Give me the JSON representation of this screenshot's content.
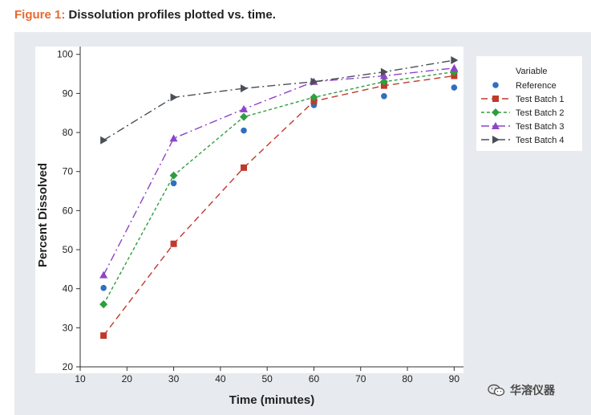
{
  "caption": {
    "label": "Figure 1:",
    "text": "Dissolution profiles plotted vs. time."
  },
  "watermark": {
    "text": "华溶仪器",
    "icon": "wechat-icon"
  },
  "chart_data": {
    "type": "line",
    "xlabel": "Time (minutes)",
    "ylabel": "Percent Dissolved",
    "xlim": [
      10,
      92
    ],
    "ylim": [
      20,
      102
    ],
    "xticks": [
      10,
      20,
      30,
      40,
      50,
      60,
      70,
      80,
      90
    ],
    "yticks": [
      20,
      30,
      40,
      50,
      60,
      70,
      80,
      90,
      100
    ],
    "grid": false,
    "legend_position": "top-right",
    "legend_title": "Variable",
    "series": [
      {
        "name": "Reference",
        "color": "#2f6fbf",
        "marker": "circle",
        "line": "none",
        "x": [
          15,
          30,
          45,
          60,
          75,
          90
        ],
        "y": [
          40.2,
          67,
          80.5,
          87,
          89.3,
          91.5
        ]
      },
      {
        "name": "Test Batch 1",
        "color": "#c0392b",
        "marker": "square",
        "line": "dashed",
        "x": [
          15,
          30,
          45,
          60,
          75,
          90
        ],
        "y": [
          28,
          51.5,
          71,
          88,
          92,
          94.5
        ]
      },
      {
        "name": "Test Batch 2",
        "color": "#2e9e3f",
        "marker": "diamond",
        "line": "dotted",
        "x": [
          15,
          30,
          45,
          60,
          75,
          90
        ],
        "y": [
          36,
          69,
          84,
          89,
          93,
          95.5
        ]
      },
      {
        "name": "Test Batch 3",
        "color": "#8e44c9",
        "marker": "triangle-up",
        "line": "dashdot",
        "x": [
          15,
          30,
          45,
          60,
          75,
          90
        ],
        "y": [
          43.5,
          78.5,
          86,
          93,
          94.5,
          96.5
        ]
      },
      {
        "name": "Test Batch 4",
        "color": "#4a4f55",
        "marker": "triangle-right",
        "line": "dashdot",
        "x": [
          15,
          30,
          45,
          60,
          75,
          90
        ],
        "y": [
          78,
          89,
          91.3,
          93,
          95.5,
          98.5
        ]
      }
    ]
  }
}
